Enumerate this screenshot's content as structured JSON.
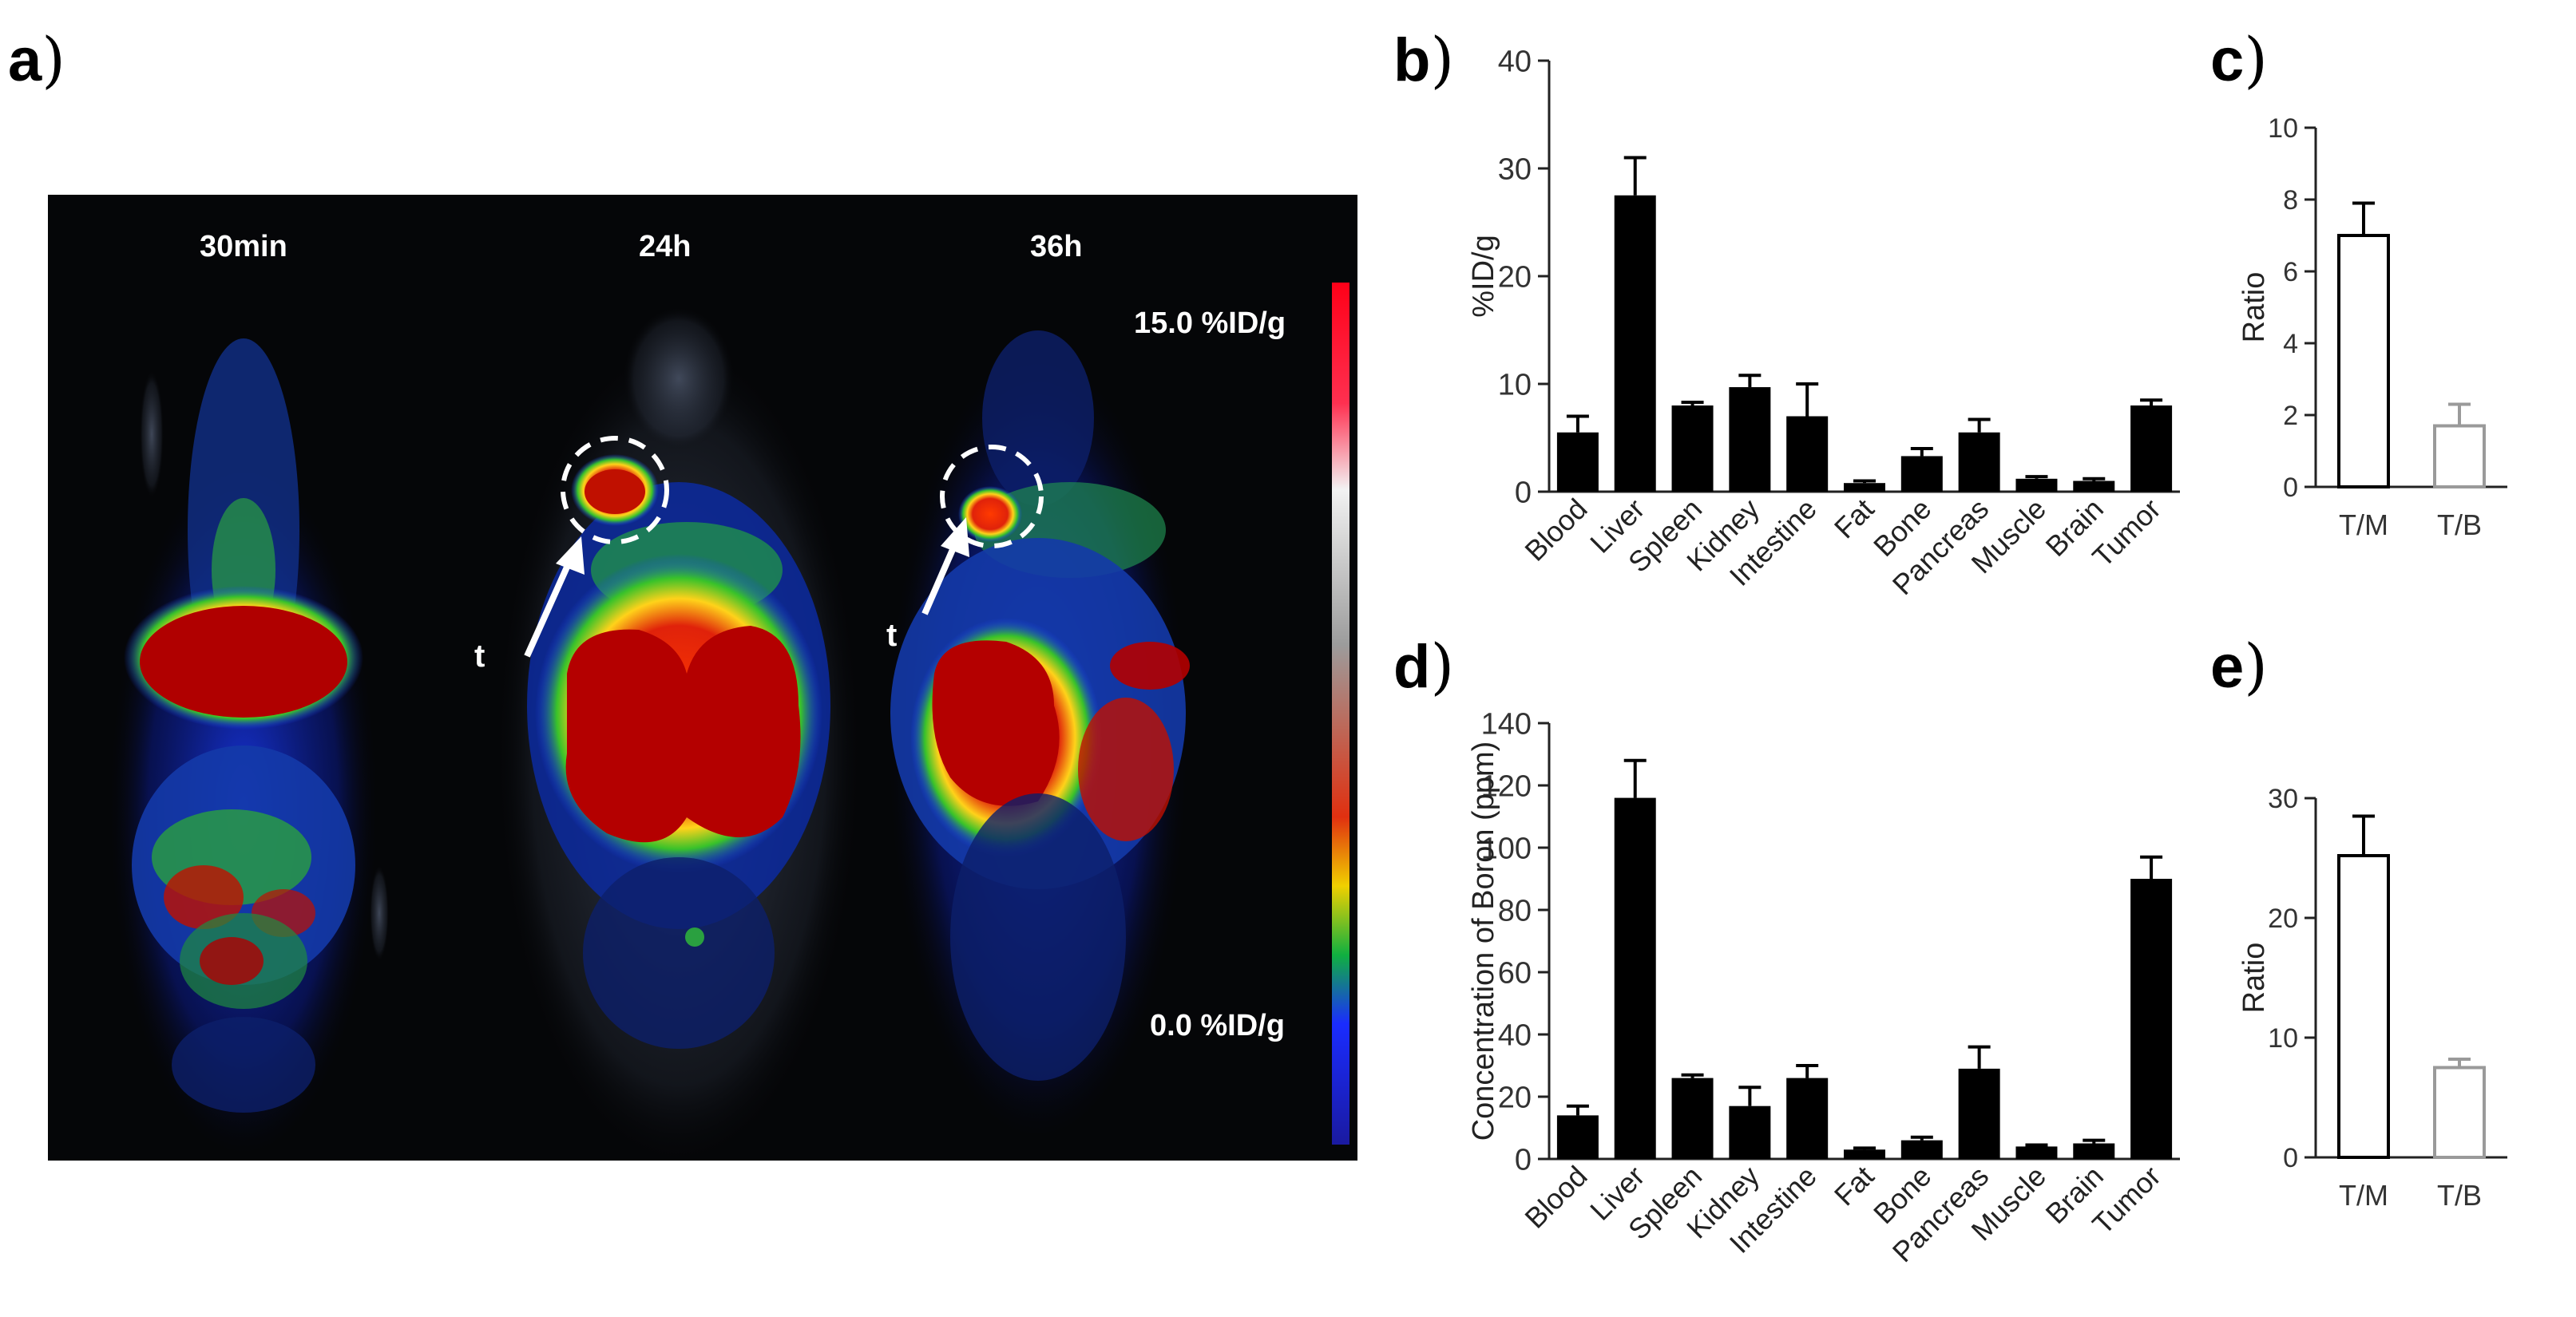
{
  "panel_labels": {
    "a": "a",
    "b": "b",
    "c": "c",
    "d": "d",
    "e": "e",
    "paren": ")"
  },
  "pet": {
    "timepoints": [
      "30min",
      "24h",
      "36h"
    ],
    "colorbar": {
      "max_label": "15.0 %ID/g",
      "min_label": "0.0 %ID/g"
    },
    "tumor_marker": "t"
  },
  "colors": {
    "bar_black": "#000000",
    "outline_gray": "#9a9a9a",
    "axis": "#222222"
  },
  "chart_data": [
    {
      "panel": "b",
      "type": "bar",
      "categories": [
        "Blood",
        "Liver",
        "Spleen",
        "Kidney",
        "Intestine",
        "Fat",
        "Bone",
        "Pancreas",
        "Muscle",
        "Brain",
        "Tumor"
      ],
      "values": [
        5.5,
        27.5,
        8.0,
        9.7,
        7.0,
        0.8,
        3.3,
        5.5,
        1.2,
        1.0,
        8.0
      ],
      "errors": [
        1.5,
        3.5,
        0.3,
        1.1,
        3.0,
        0.2,
        0.7,
        1.2,
        0.2,
        0.2,
        0.5
      ],
      "ylabel": "%ID/g",
      "ylim": [
        0,
        40
      ],
      "yticks": [
        "0",
        "10",
        "20",
        "30",
        "40"
      ]
    },
    {
      "panel": "c",
      "type": "bar",
      "categories": [
        "T/M",
        "T/B"
      ],
      "values": [
        7.0,
        1.7
      ],
      "errors": [
        0.9,
        0.6
      ],
      "ylabel": "Ratio",
      "ylim": [
        0,
        10
      ],
      "yticks": [
        "0",
        "2",
        "4",
        "6",
        "8",
        "10"
      ]
    },
    {
      "panel": "d",
      "type": "bar",
      "categories": [
        "Blood",
        "Liver",
        "Spleen",
        "Kidney",
        "Intestine",
        "Fat",
        "Bone",
        "Pancreas",
        "Muscle",
        "Brain",
        "Tumor"
      ],
      "values": [
        14,
        116,
        26,
        17,
        26,
        3,
        6,
        29,
        4,
        5,
        90
      ],
      "errors": [
        3,
        12,
        1,
        6,
        4,
        0.5,
        1,
        7,
        0.5,
        1,
        7
      ],
      "ylabel": "Concentration of Boron (ppm)",
      "ylim": [
        0,
        140
      ],
      "yticks": [
        "0",
        "20",
        "40",
        "60",
        "80",
        "100",
        "120",
        "140"
      ]
    },
    {
      "panel": "e",
      "type": "bar",
      "categories": [
        "T/M",
        "T/B"
      ],
      "values": [
        25.2,
        7.5
      ],
      "errors": [
        3.3,
        0.7
      ],
      "ylabel": "Ratio",
      "ylim": [
        0,
        30
      ],
      "yticks": [
        "0",
        "10",
        "20",
        "30"
      ]
    }
  ]
}
